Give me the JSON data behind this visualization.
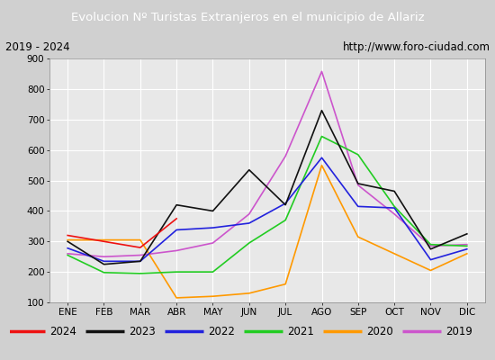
{
  "title": "Evolucion Nº Turistas Extranjeros en el municipio de Allariz",
  "subtitle_left": "2019 - 2024",
  "subtitle_right": "http://www.foro-ciudad.com",
  "title_bg_color": "#4D7CC7",
  "title_text_color": "white",
  "months": [
    "ENE",
    "FEB",
    "MAR",
    "ABR",
    "MAY",
    "JUN",
    "JUL",
    "AGO",
    "SEP",
    "OCT",
    "NOV",
    "DIC"
  ],
  "ylim": [
    100,
    900
  ],
  "yticks": [
    100,
    200,
    300,
    400,
    500,
    600,
    700,
    800,
    900
  ],
  "series": {
    "2024": {
      "color": "#EE1111",
      "values": [
        320,
        300,
        280,
        375,
        null,
        null,
        null,
        null,
        null,
        null,
        null,
        null
      ]
    },
    "2023": {
      "color": "#111111",
      "values": [
        300,
        225,
        235,
        420,
        400,
        535,
        420,
        730,
        490,
        465,
        275,
        325
      ]
    },
    "2022": {
      "color": "#2222DD",
      "values": [
        278,
        235,
        235,
        338,
        345,
        360,
        425,
        575,
        415,
        410,
        240,
        275
      ]
    },
    "2021": {
      "color": "#22CC22",
      "values": [
        255,
        198,
        195,
        200,
        200,
        295,
        370,
        645,
        585,
        415,
        290,
        285
      ]
    },
    "2020": {
      "color": "#FF9900",
      "values": [
        305,
        305,
        305,
        115,
        120,
        130,
        160,
        550,
        315,
        260,
        205,
        260
      ]
    },
    "2019": {
      "color": "#CC55CC",
      "values": [
        260,
        250,
        255,
        270,
        295,
        390,
        580,
        858,
        485,
        390,
        285,
        290
      ]
    }
  },
  "legend_order": [
    "2024",
    "2023",
    "2022",
    "2021",
    "2020",
    "2019"
  ],
  "bg_color": "#E8E8E8",
  "grid_color": "#FFFFFF",
  "outer_bg": "#D0D0D0",
  "subtitle_bg": "#F0F0F0",
  "subtitle_border": "#888888"
}
